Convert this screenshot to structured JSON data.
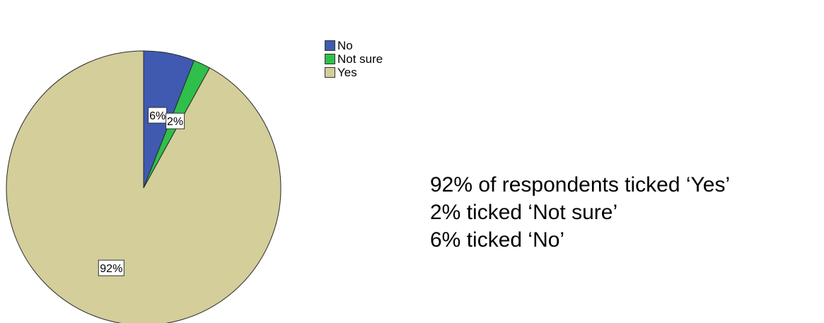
{
  "chart_data": {
    "type": "pie",
    "categories": [
      "No",
      "Not sure",
      "Yes"
    ],
    "values": [
      6,
      2,
      92
    ],
    "data_labels": [
      "6%",
      "2%",
      "92%"
    ],
    "start_angle_deg": 0,
    "direction": "clockwise",
    "colors": [
      "#3f5ab0",
      "#2fbf4a",
      "#d3ce9a"
    ],
    "legend": {
      "placement": "top-right",
      "items": [
        {
          "label": "No",
          "color": "#3f5ab0"
        },
        {
          "label": "Not sure",
          "color": "#2fbf4a"
        },
        {
          "label": "Yes",
          "color": "#d3ce9a"
        }
      ]
    },
    "title": "",
    "xlabel": "",
    "ylabel": ""
  },
  "summary": {
    "lines": [
      "92% of respondents ticked ‘Yes’",
      "2% ticked ‘Not sure’",
      "6% ticked ‘No’"
    ]
  }
}
